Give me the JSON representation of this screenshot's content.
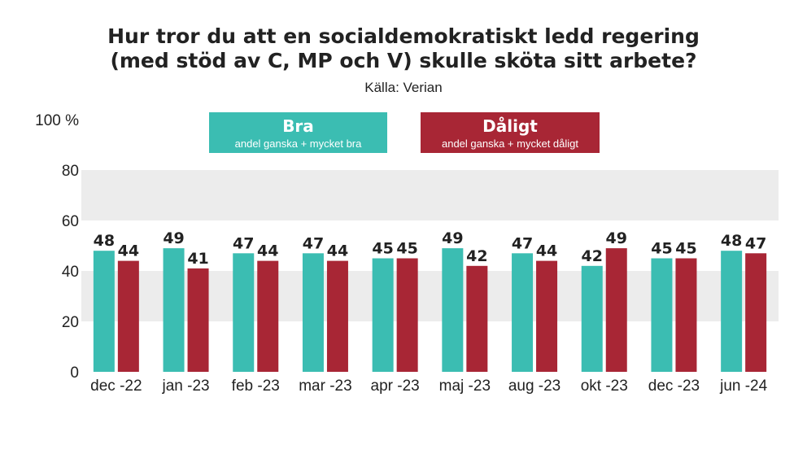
{
  "title_line1": "Hur tror du att en socialdemokratiskt ledd regering",
  "title_line2": "(med stöd av C, MP och V) skulle sköta sitt arbete?",
  "source": "Källa: Verian",
  "legend": {
    "bra": {
      "title": "Bra",
      "subtitle": "andel ganska + mycket bra",
      "color": "#3bbdb2"
    },
    "daligt": {
      "title": "Dåligt",
      "subtitle": "andel ganska + mycket dåligt",
      "color": "#a82635"
    }
  },
  "chart_data": {
    "type": "bar",
    "categories": [
      "dec -22",
      "jan -23",
      "feb -23",
      "mar -23",
      "apr -23",
      "maj -23",
      "aug -23",
      "okt -23",
      "dec -23",
      "jun -24"
    ],
    "series": [
      {
        "name": "Bra",
        "values": [
          48,
          49,
          47,
          47,
          45,
          49,
          47,
          42,
          45,
          48
        ],
        "color": "#3bbdb2"
      },
      {
        "name": "Dåligt",
        "values": [
          44,
          41,
          44,
          44,
          45,
          42,
          44,
          49,
          45,
          47
        ],
        "color": "#a82635"
      }
    ],
    "ylim": [
      0,
      100
    ],
    "yticks": [
      0,
      20,
      40,
      60,
      80,
      100
    ],
    "ytick_labels": [
      "0",
      "20",
      "40",
      "60",
      "80",
      "100 %"
    ],
    "grid": true
  }
}
